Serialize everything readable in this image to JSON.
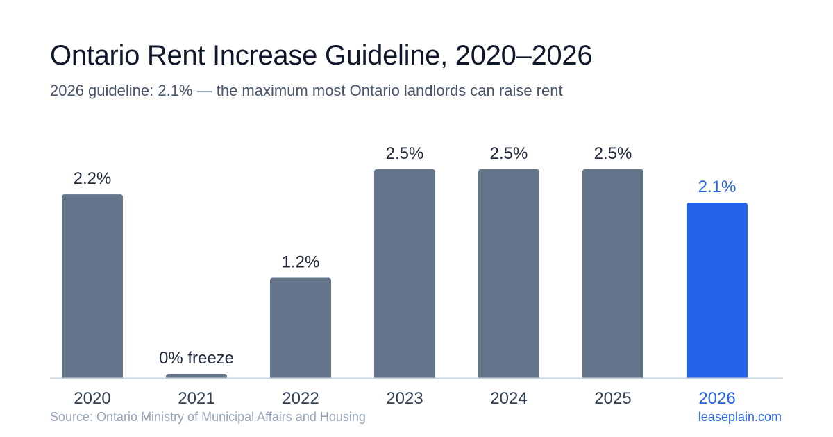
{
  "chart_data": {
    "type": "bar",
    "title": "Ontario Rent Increase Guideline, 2020–2026",
    "subtitle": "2026 guideline: 2.1% — the maximum most Ontario landlords can raise rent",
    "categories": [
      "2020",
      "2021",
      "2022",
      "2023",
      "2024",
      "2025",
      "2026"
    ],
    "values": [
      2.2,
      0,
      1.2,
      2.5,
      2.5,
      2.5,
      2.1
    ],
    "data_labels": [
      "2.2%",
      "0% freeze",
      "1.2%",
      "2.5%",
      "2.5%",
      "2.5%",
      "2.1%"
    ],
    "highlight_index": 6,
    "ylim": [
      0,
      2.5
    ],
    "grid": false,
    "colors": {
      "bar": "#64748b",
      "highlight": "#2563eb",
      "label": "#1e293b",
      "axis": "#cbd5e1"
    }
  },
  "footer": {
    "source": "Source: Ontario Ministry of Municipal Affairs and Housing",
    "site": "leaseplain.com"
  }
}
